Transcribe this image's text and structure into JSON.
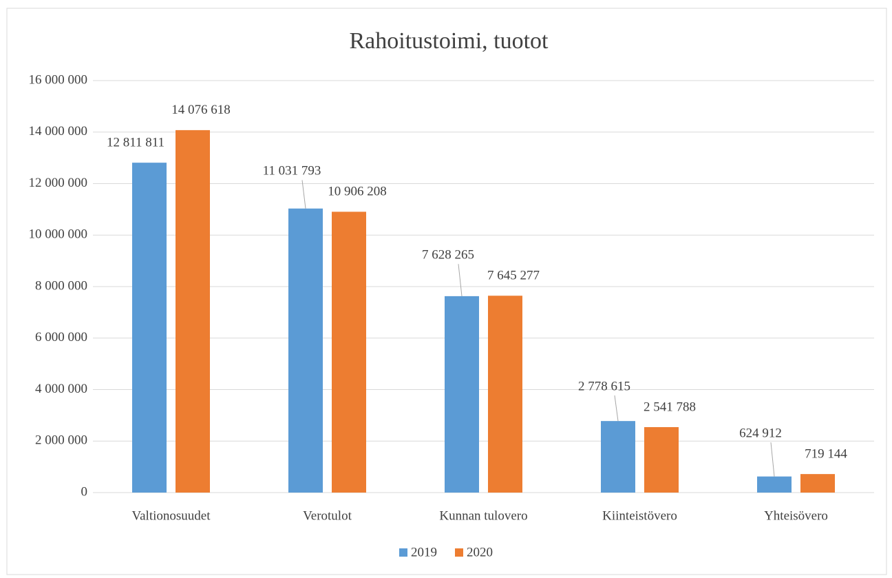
{
  "chart_data": {
    "type": "bar",
    "title": "Rahoitustoimi, tuotot",
    "categories": [
      "Valtionosuudet",
      "Verotulot",
      "Kunnan tulovero",
      "Kiinteistövero",
      "Yhteisövero"
    ],
    "series": [
      {
        "name": "2019",
        "color": "#5b9bd5",
        "values": [
          12811811,
          11031793,
          7628265,
          2778615,
          624912
        ],
        "value_labels": [
          "12 811 811",
          "11 031 793",
          "7 628 265",
          "2 778 615",
          "624 912"
        ]
      },
      {
        "name": "2020",
        "color": "#ed7d31",
        "values": [
          14076618,
          10906208,
          7645277,
          2541788,
          719144
        ],
        "value_labels": [
          "14 076 618",
          "10 906 208",
          "7 645 277",
          "2 541 788",
          "719 144"
        ]
      }
    ],
    "ylim": [
      0,
      16000000
    ],
    "yticks": [
      0,
      {
        "value": 2000000,
        "label": "2 000 000"
      },
      {
        "value": 4000000,
        "label": "4 000 000"
      },
      {
        "value": 6000000,
        "label": "6 000 000"
      },
      {
        "value": 8000000,
        "label": "8 000 000"
      },
      {
        "value": 10000000,
        "label": "10 000 000"
      },
      {
        "value": 12000000,
        "label": "12 000 000"
      },
      {
        "value": 14000000,
        "label": "14 000 000"
      },
      {
        "value": 16000000,
        "label": "16 000 000"
      }
    ],
    "grid": true,
    "legend": "bottom"
  }
}
